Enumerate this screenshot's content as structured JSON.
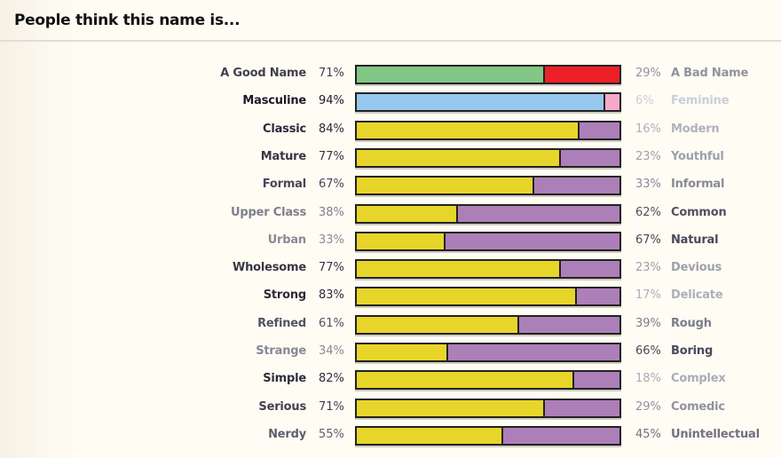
{
  "title": "People think this name is...",
  "chart_data": {
    "type": "bar",
    "orientation": "horizontal-stacked-100",
    "title": "People think this name is...",
    "rows": [
      {
        "left": "A Good Name",
        "left_pct": 71,
        "right": "A Bad Name",
        "right_pct": 29,
        "left_color": "#82c785",
        "right_color": "#ee2027"
      },
      {
        "left": "Masculine",
        "left_pct": 94,
        "right": "Feminine",
        "right_pct": 6,
        "left_color": "#95c8ec",
        "right_color": "#f4a9cb"
      },
      {
        "left": "Classic",
        "left_pct": 84,
        "right": "Modern",
        "right_pct": 16,
        "left_color": "#e8d52a",
        "right_color": "#ad7fb8"
      },
      {
        "left": "Mature",
        "left_pct": 77,
        "right": "Youthful",
        "right_pct": 23,
        "left_color": "#e8d52a",
        "right_color": "#ad7fb8"
      },
      {
        "left": "Formal",
        "left_pct": 67,
        "right": "Informal",
        "right_pct": 33,
        "left_color": "#e8d52a",
        "right_color": "#ad7fb8"
      },
      {
        "left": "Upper Class",
        "left_pct": 38,
        "right": "Common",
        "right_pct": 62,
        "left_color": "#e8d52a",
        "right_color": "#ad7fb8"
      },
      {
        "left": "Urban",
        "left_pct": 33,
        "right": "Natural",
        "right_pct": 67,
        "left_color": "#e8d52a",
        "right_color": "#ad7fb8"
      },
      {
        "left": "Wholesome",
        "left_pct": 77,
        "right": "Devious",
        "right_pct": 23,
        "left_color": "#e8d52a",
        "right_color": "#ad7fb8"
      },
      {
        "left": "Strong",
        "left_pct": 83,
        "right": "Delicate",
        "right_pct": 17,
        "left_color": "#e8d52a",
        "right_color": "#ad7fb8"
      },
      {
        "left": "Refined",
        "left_pct": 61,
        "right": "Rough",
        "right_pct": 39,
        "left_color": "#e8d52a",
        "right_color": "#ad7fb8"
      },
      {
        "left": "Strange",
        "left_pct": 34,
        "right": "Boring",
        "right_pct": 66,
        "left_color": "#e8d52a",
        "right_color": "#ad7fb8"
      },
      {
        "left": "Simple",
        "left_pct": 82,
        "right": "Complex",
        "right_pct": 18,
        "left_color": "#e8d52a",
        "right_color": "#ad7fb8"
      },
      {
        "left": "Serious",
        "left_pct": 71,
        "right": "Comedic",
        "right_pct": 29,
        "left_color": "#e8d52a",
        "right_color": "#ad7fb8"
      },
      {
        "left": "Nerdy",
        "left_pct": 55,
        "right": "Unintellectual",
        "right_pct": 45,
        "left_color": "#e8d52a",
        "right_color": "#ad7fb8"
      }
    ]
  }
}
